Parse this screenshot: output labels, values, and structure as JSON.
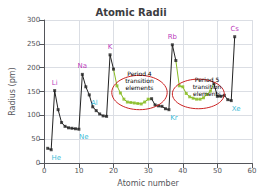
{
  "chart_data": {
    "type": "line",
    "title": "Atomic Radii",
    "xlabel": "Atomic number",
    "ylabel": "Radius (pm)",
    "x": [
      1,
      2,
      3,
      4,
      5,
      6,
      7,
      8,
      9,
      10,
      11,
      12,
      13,
      14,
      15,
      16,
      17,
      18,
      19,
      20,
      21,
      22,
      23,
      24,
      25,
      26,
      27,
      28,
      29,
      30,
      31,
      32,
      33,
      34,
      35,
      36,
      37,
      38,
      39,
      40,
      41,
      42,
      43,
      44,
      45,
      46,
      47,
      48,
      49,
      50,
      51,
      52,
      53,
      54,
      55
    ],
    "values": [
      31,
      28,
      152,
      112,
      85,
      77,
      74,
      73,
      72,
      71,
      186,
      160,
      143,
      118,
      110,
      103,
      99,
      98,
      227,
      197,
      162,
      147,
      134,
      128,
      127,
      126,
      125,
      124,
      128,
      134,
      135,
      122,
      120,
      119,
      114,
      112,
      248,
      215,
      162,
      160,
      146,
      139,
      136,
      134,
      134,
      137,
      144,
      151,
      167,
      140,
      140,
      142,
      133,
      131,
      265
    ],
    "colors": [
      "#222222",
      "#222222",
      "#222222",
      "#222222",
      "#222222",
      "#222222",
      "#222222",
      "#222222",
      "#222222",
      "#222222",
      "#222222",
      "#222222",
      "#222222",
      "#222222",
      "#222222",
      "#222222",
      "#222222",
      "#222222",
      "#222222",
      "#222222",
      "#88bb22",
      "#88bb22",
      "#88bb22",
      "#88bb22",
      "#88bb22",
      "#88bb22",
      "#88bb22",
      "#88bb22",
      "#88bb22",
      "#88bb22",
      "#222222",
      "#222222",
      "#222222",
      "#222222",
      "#222222",
      "#222222",
      "#222222",
      "#222222",
      "#88bb22",
      "#88bb22",
      "#88bb22",
      "#88bb22",
      "#88bb22",
      "#88bb22",
      "#88bb22",
      "#88bb22",
      "#88bb22",
      "#88bb22",
      "#222222",
      "#222222",
      "#222222",
      "#222222",
      "#222222",
      "#222222",
      "#222222"
    ],
    "marker": "square",
    "xlim": [
      0,
      60
    ],
    "ylim": [
      0,
      300
    ],
    "xticks": [
      0,
      10,
      20,
      30,
      40,
      50,
      60
    ],
    "yticks": [
      0,
      50,
      100,
      150,
      200,
      250,
      300
    ],
    "grid": true,
    "element_labels": [
      {
        "text": "He",
        "x": 2,
        "color": "#00aacc",
        "position": "below"
      },
      {
        "text": "Li",
        "x": 3,
        "color": "#aa00aa",
        "position": "above"
      },
      {
        "text": "Ne",
        "x": 10,
        "color": "#00aacc",
        "position": "below"
      },
      {
        "text": "Na",
        "x": 11,
        "color": "#aa00aa",
        "position": "above"
      },
      {
        "text": "Al",
        "x": 13,
        "color": "#00aacc",
        "position": "below"
      },
      {
        "text": "K",
        "x": 19,
        "color": "#aa00aa",
        "position": "above"
      },
      {
        "text": "Kr",
        "x": 36,
        "color": "#00aacc",
        "position": "below"
      },
      {
        "text": "Rb",
        "x": 37,
        "color": "#aa00aa",
        "position": "above"
      },
      {
        "text": "Xe",
        "x": 54,
        "color": "#00aacc",
        "position": "below"
      },
      {
        "text": "Cs",
        "x": 55,
        "color": "#aa00aa",
        "position": "above"
      }
    ],
    "annotations": [
      {
        "text": "Period 4\ntransition\nelements",
        "x": 27.5,
        "y": 195
      },
      {
        "text": "Period 5\ntransition\nelements",
        "x": 47,
        "y": 182
      }
    ],
    "ellipses": [
      {
        "x": 27.5,
        "y": 148,
        "width": 16,
        "height": 72,
        "color": "#cc2222"
      },
      {
        "x": 44.5,
        "y": 145,
        "width": 15,
        "height": 62,
        "color": "#cc2222"
      }
    ]
  }
}
